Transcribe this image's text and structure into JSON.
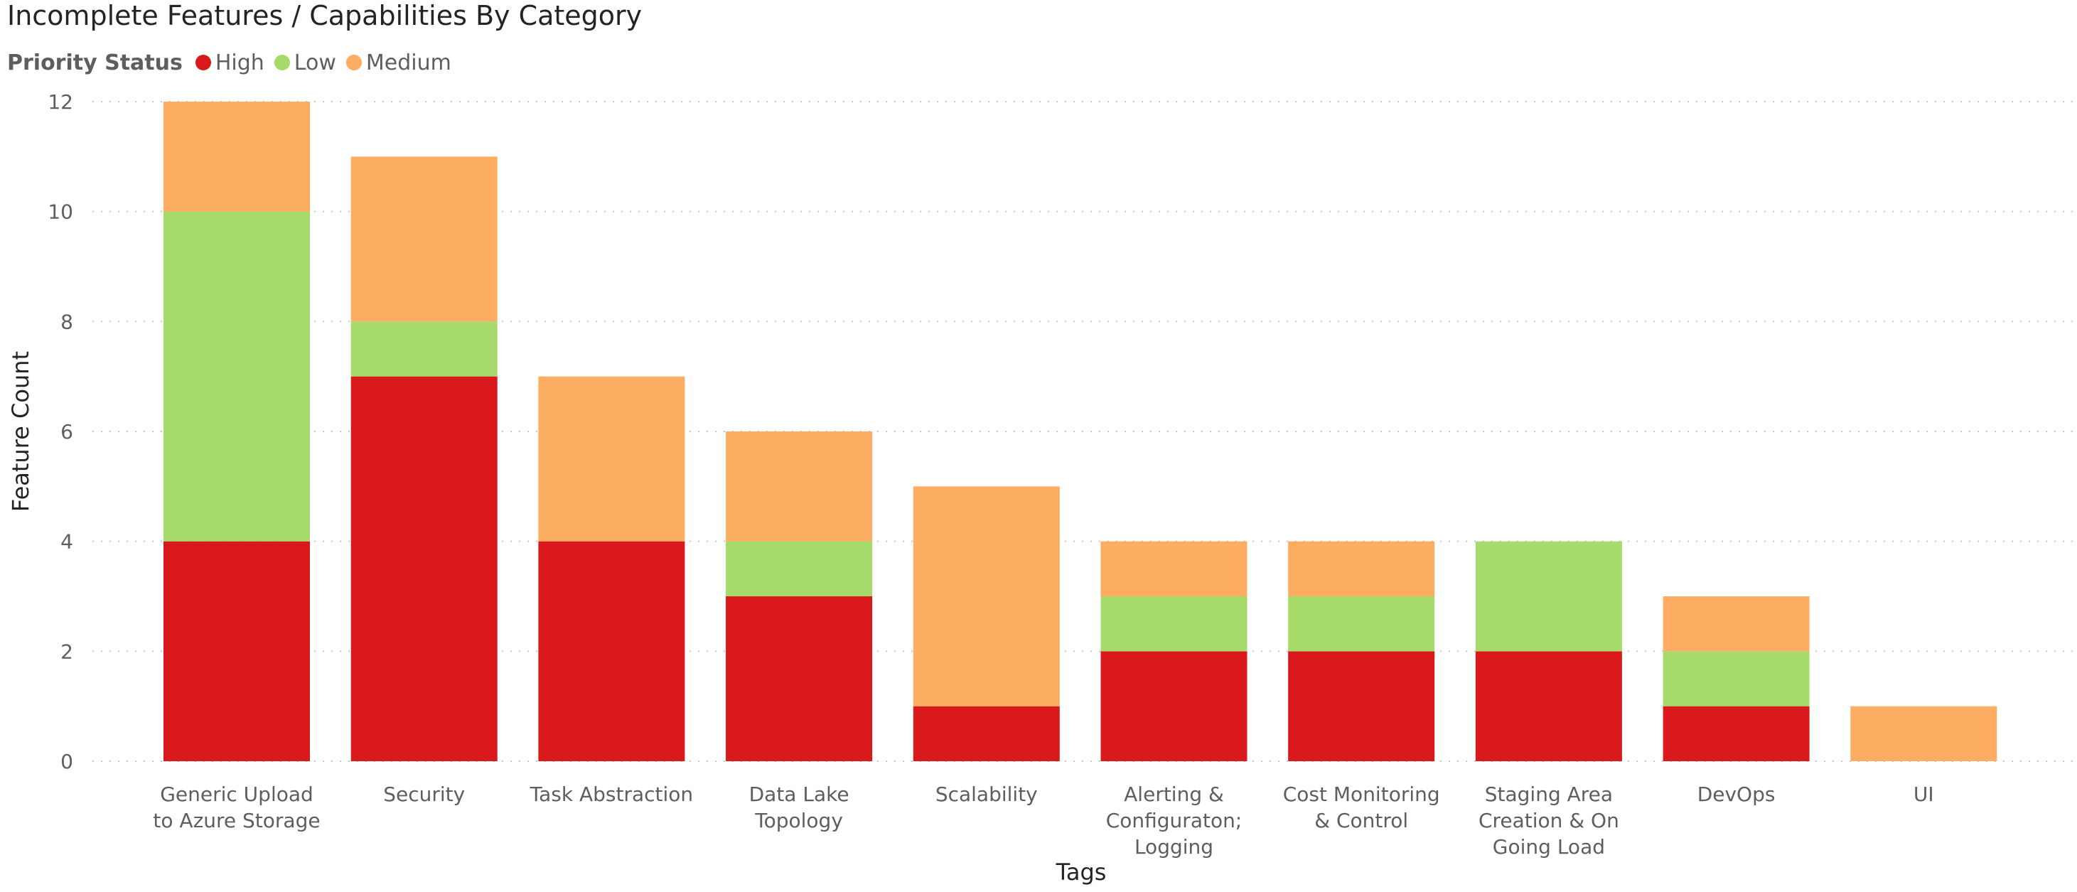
{
  "chart_data": {
    "type": "bar",
    "stacked": true,
    "title": "Incomplete Features / Capabilities By Category",
    "legend_title": "Priority Status",
    "legend_position": "top-left",
    "xlabel": "Tags",
    "ylabel": "Feature Count",
    "ylim": [
      0,
      12
    ],
    "yticks": [
      0,
      2,
      4,
      6,
      8,
      10,
      12
    ],
    "grid": true,
    "categories": [
      "Generic Upload to Azure Storage",
      "Security",
      "Task Abstraction",
      "Data Lake Topology",
      "Scalability",
      "Alerting & Configuraton; Logging",
      "Cost Monitoring & Control",
      "Staging Area Creation & On Going Load",
      "DevOps",
      "UI"
    ],
    "series": [
      {
        "name": "High",
        "color": "#d9191c",
        "values": [
          4,
          7,
          4,
          3,
          1,
          2,
          2,
          2,
          1,
          0
        ]
      },
      {
        "name": "Low",
        "color": "#a6db6b",
        "values": [
          6,
          1,
          0,
          1,
          0,
          1,
          1,
          2,
          1,
          0
        ]
      },
      {
        "name": "Medium",
        "color": "#fdad62",
        "values": [
          2,
          3,
          3,
          2,
          4,
          1,
          1,
          0,
          1,
          1
        ]
      }
    ]
  }
}
